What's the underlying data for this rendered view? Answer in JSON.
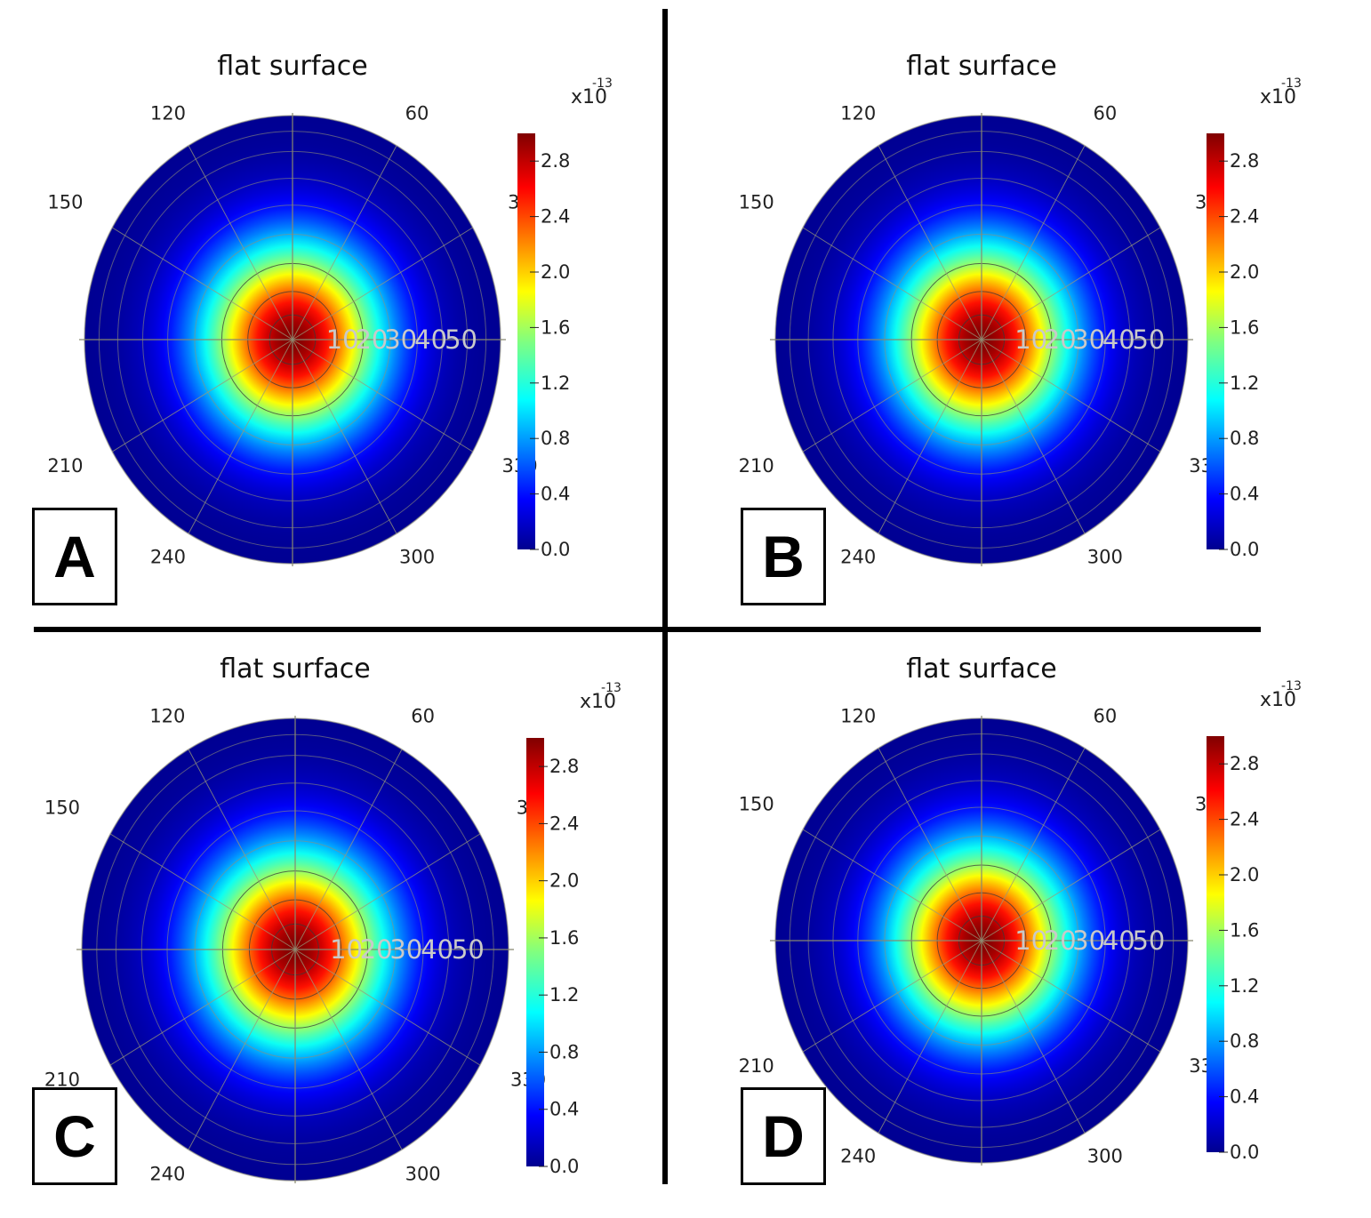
{
  "chart_data": [
    {
      "type": "heatmap",
      "panel_label": "A",
      "title": "flat surface",
      "angle_labels": [
        "30",
        "60",
        "120",
        "150",
        "210",
        "240",
        "300",
        "330"
      ],
      "radial_labels": [
        "10",
        "20",
        "30",
        "40",
        "50"
      ],
      "colorbar": {
        "ticks": [
          "0.0",
          "0.4",
          "0.8",
          "1.2",
          "1.6",
          "2.0",
          "2.4",
          "2.8"
        ],
        "multiplier": "x10",
        "exponent": "-13",
        "range": [
          0,
          3.0
        ]
      },
      "peak": 3.0
    },
    {
      "type": "heatmap",
      "panel_label": "B",
      "title": "flat surface",
      "angle_labels": [
        "30",
        "60",
        "120",
        "150",
        "210",
        "240",
        "300",
        "330"
      ],
      "radial_labels": [
        "10",
        "20",
        "30",
        "40",
        "50"
      ],
      "colorbar": {
        "ticks": [
          "0.0",
          "0.4",
          "0.8",
          "1.2",
          "1.6",
          "2.0",
          "2.4",
          "2.8"
        ],
        "multiplier": "x10",
        "exponent": "-13",
        "range": [
          0,
          3.0
        ]
      },
      "peak": 3.0
    },
    {
      "type": "heatmap",
      "panel_label": "C",
      "title": "flat surface",
      "angle_labels": [
        "30",
        "60",
        "120",
        "150",
        "210",
        "240",
        "300",
        "330"
      ],
      "radial_labels": [
        "10",
        "20",
        "30",
        "40",
        "50"
      ],
      "colorbar": {
        "ticks": [
          "0.0",
          "0.4",
          "0.8",
          "1.2",
          "1.6",
          "2.0",
          "2.4",
          "2.8"
        ],
        "multiplier": "x10",
        "exponent": "-13",
        "range": [
          0,
          3.0
        ]
      },
      "peak": 3.0
    },
    {
      "type": "heatmap",
      "panel_label": "D",
      "title": "flat surface",
      "angle_labels": [
        "30",
        "60",
        "120",
        "150",
        "210",
        "240",
        "300",
        "330"
      ],
      "radial_labels": [
        "10",
        "20",
        "30",
        "40",
        "50"
      ],
      "colorbar": {
        "ticks": [
          "0.0",
          "0.4",
          "0.8",
          "1.2",
          "1.6",
          "2.0",
          "2.4",
          "2.8"
        ],
        "multiplier": "x10",
        "exponent": "-13",
        "range": [
          0,
          3.0
        ]
      },
      "peak": 3.0
    }
  ]
}
